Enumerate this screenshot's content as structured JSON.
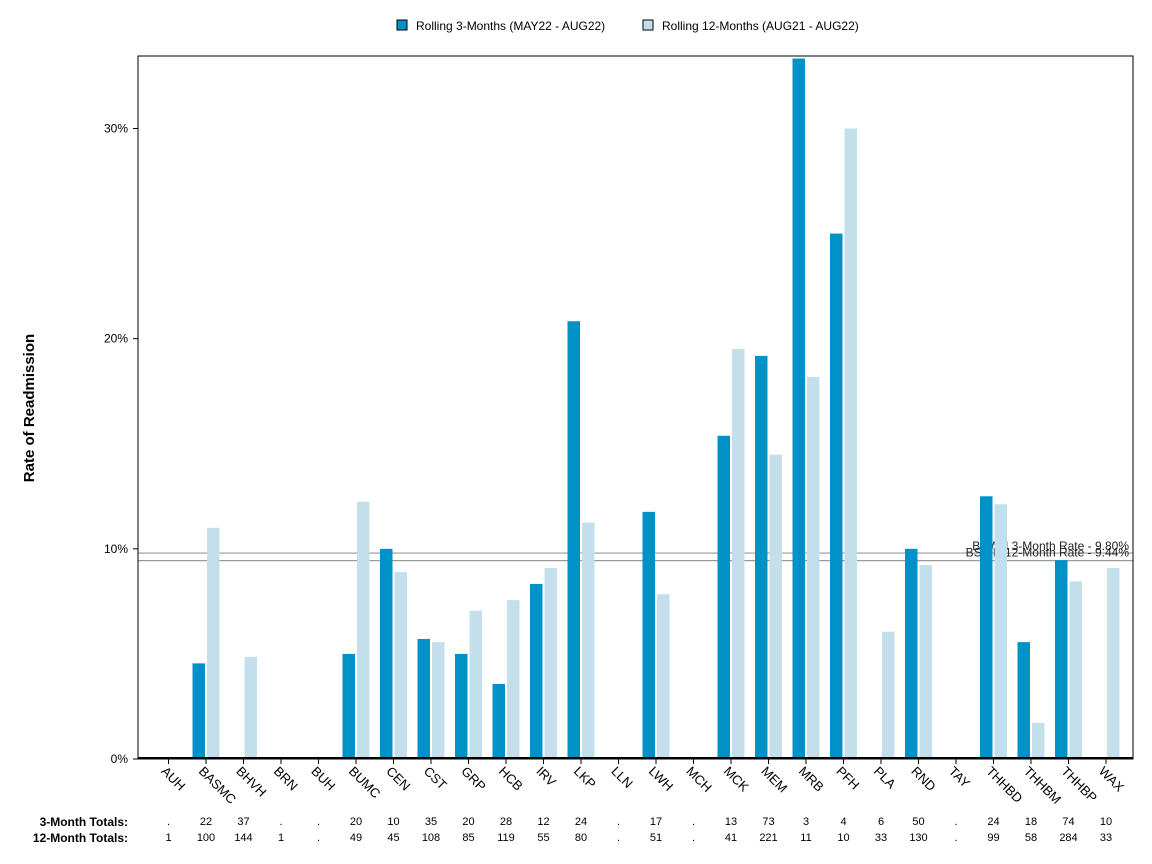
{
  "colors": {
    "series_3m": "#0092c7",
    "series_12m": "#c3dfec",
    "ref_line": "#999999",
    "axis": "#000000"
  },
  "chart_data": {
    "type": "bar",
    "ylabel": "Rate of Readmission",
    "ylim": [
      0,
      0.3345
    ],
    "yticks": [
      0,
      0.1,
      0.2,
      0.3
    ],
    "ytick_labels": [
      "0%",
      "10%",
      "20%",
      "30%"
    ],
    "legend_position": "top-center",
    "categories": [
      "AUH",
      "BASMC",
      "BHVH",
      "BRN",
      "BUH",
      "BUMC",
      "CEN",
      "CST",
      "GRP",
      "HCB",
      "IRV",
      "LKP",
      "LLN",
      "LWH",
      "MCH",
      "MCK",
      "MEM",
      "MRB",
      "PFH",
      "PLA",
      "RND",
      "TAY",
      "THHBD",
      "THHBM",
      "THHBP",
      "WAX"
    ],
    "series": [
      {
        "name": "Rolling 3-Months (MAY22 - AUG22)",
        "values": [
          0,
          0.0455,
          0,
          0,
          0,
          0.05,
          0.1,
          0.0571,
          0.05,
          0.0357,
          0.0833,
          0.2083,
          0,
          0.1176,
          0,
          0.1538,
          0.1918,
          0.3333,
          0.25,
          0,
          0.1,
          0,
          0.125,
          0.0556,
          0.0946,
          0
        ]
      },
      {
        "name": "Rolling 12-Months (AUG21 - AUG22)",
        "values": [
          0,
          0.11,
          0.0486,
          0,
          0,
          0.1224,
          0.0889,
          0.0556,
          0.0706,
          0.0756,
          0.0909,
          0.1125,
          0,
          0.0784,
          0,
          0.1951,
          0.1448,
          0.1818,
          0.3,
          0.0606,
          0.0923,
          0,
          0.1212,
          0.0172,
          0.0845,
          0.0909
        ]
      }
    ],
    "reference_lines": [
      {
        "label": "BSWH 3-Month Rate - 9.80%",
        "value": 0.098
      },
      {
        "label": "BSWH 12-Month Rate - 9.44%",
        "value": 0.0944
      }
    ],
    "totals": {
      "three_month_label": "3-Month Totals:",
      "twelve_month_label": "12-Month Totals:",
      "three_month": [
        ".",
        "22",
        "37",
        ".",
        ".",
        "20",
        "10",
        "35",
        "20",
        "28",
        "12",
        "24",
        ".",
        "17",
        ".",
        "13",
        "73",
        "3",
        "4",
        "6",
        "50",
        ".",
        "24",
        "18",
        "74",
        "10"
      ],
      "twelve_month": [
        "1",
        "100",
        "144",
        "1",
        ".",
        "49",
        "45",
        "108",
        "85",
        "119",
        "55",
        "80",
        ".",
        "51",
        ".",
        "41",
        "221",
        "11",
        "10",
        "33",
        "130",
        ".",
        "99",
        "58",
        "284",
        "33"
      ]
    }
  }
}
